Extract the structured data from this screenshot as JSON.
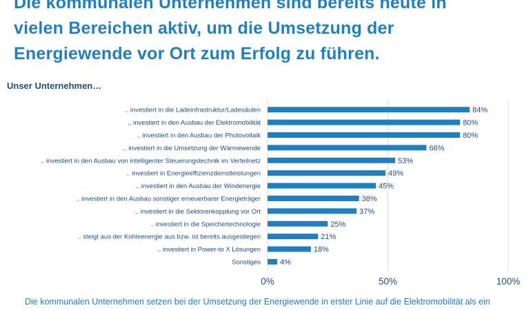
{
  "headline": {
    "line1": "Die kommunalen Unternehmen sind bereits heute in",
    "line2": "vielen Bereichen aktiv, um die Umsetzung der",
    "line3": "Energiewende vor Ort zum Erfolg zu führen."
  },
  "subtitle": "Unser Unternehmen…",
  "footer": "Die kommunalen Unternehmen setzen bei der Umsetzung der Energiewende in erster Linie auf die Elektromobilität als ein",
  "colors": {
    "bar": "#1f7fc1",
    "text": "#1f4e79",
    "headline": "#1f7fc1",
    "grid": "#d9d9d9"
  },
  "chart_data": {
    "type": "bar",
    "orientation": "horizontal",
    "categories": [
      ".. investiert in die Ladeinfrastruktur/Ladesäulen",
      ".. investiert in den Ausbau der Elektromobilität",
      ".. investiert in den Ausbau der Photovoltaik",
      ".. investiert in die Umsetzung der Wärmewende",
      ".. investiert in den Ausbau von intelligenter Steuerungstechnik im Verteilnetz",
      ".. investiert in Energieeffizienzdienstleistungen",
      ".. investiert in den Ausbau der Windenergie",
      ".. investiert in den Ausbau sonstiger erneuerbarer Energieträger",
      ".. investiert in die Sektorenkopplung vor Ort",
      ".. investiert in die Speichertechnologie",
      ".. steigt aus der Kohleenergie aus bzw. ist bereits ausgestiegen",
      ".. investiert in Power-to X Lösungen",
      "Sonstiges"
    ],
    "values": [
      84,
      80,
      80,
      66,
      53,
      49,
      45,
      38,
      37,
      25,
      21,
      18,
      4
    ],
    "value_labels": [
      "84%",
      "80%",
      "80%",
      "66%",
      "53%",
      "49%",
      "45%",
      "38%",
      "37%",
      "25%",
      "21%",
      "18%",
      "4%"
    ],
    "xlim": [
      0,
      100
    ],
    "xticks": [
      0,
      50,
      100
    ],
    "xtick_labels": [
      "0%",
      "50%",
      "100%"
    ],
    "grid": true
  }
}
